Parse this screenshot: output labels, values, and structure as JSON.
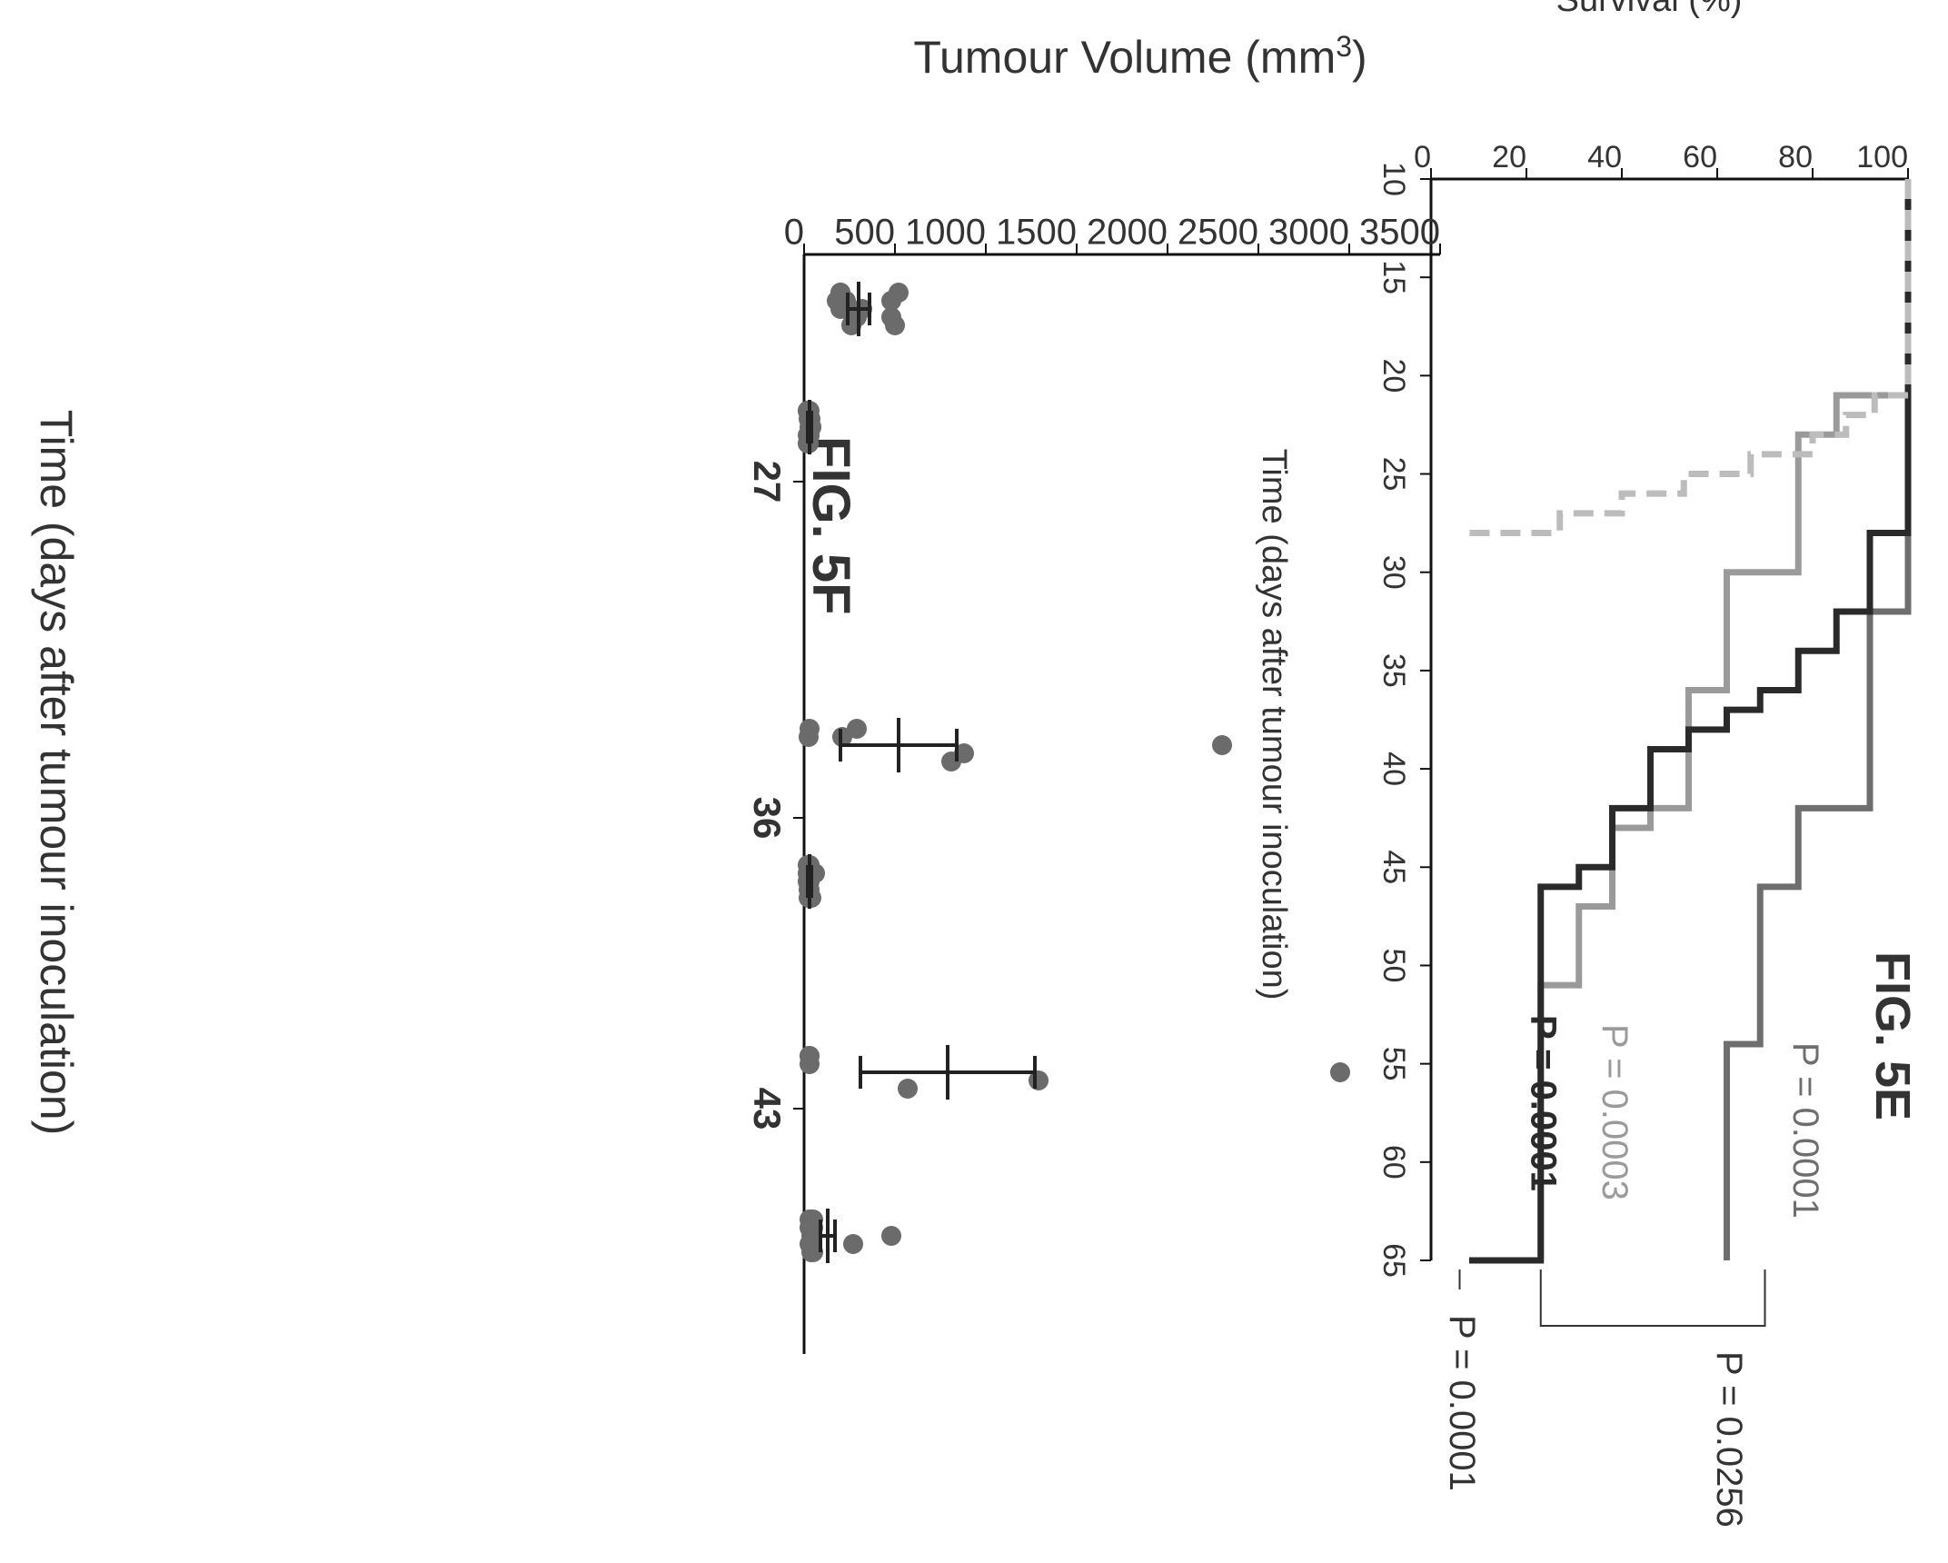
{
  "chart_data": [
    {
      "type": "line",
      "figure_label": "FIG. 5E",
      "xlabel": "Time (days after tumour inoculation)",
      "ylabel": "Survival (%)",
      "xlim": [
        10,
        65
      ],
      "ylim": [
        0,
        100
      ],
      "xticks": [
        10,
        15,
        20,
        25,
        30,
        35,
        40,
        45,
        50,
        55,
        60,
        65
      ],
      "yticks": [
        0,
        20,
        40,
        60,
        80,
        100
      ],
      "series": [
        {
          "color": "#6e6e6e",
          "style": "solid",
          "x": [
            10,
            28,
            32,
            42,
            46,
            54,
            65
          ],
          "y": [
            100,
            100,
            92,
            77,
            69,
            62,
            62
          ],
          "label": "P = 0.0001"
        },
        {
          "color": "#9a9a9a",
          "style": "solid",
          "x": [
            10,
            21,
            23,
            30,
            36,
            42,
            43,
            47,
            51,
            65
          ],
          "y": [
            100,
            85,
            77,
            62,
            54,
            46,
            38,
            31,
            23,
            23
          ],
          "label": "P = 0.0003"
        },
        {
          "color": "#2a2a2a",
          "style": "solid",
          "x": [
            10,
            28,
            32,
            34,
            36,
            37,
            38,
            39,
            42,
            45,
            46,
            65
          ],
          "y": [
            100,
            92,
            85,
            77,
            69,
            62,
            54,
            46,
            38,
            31,
            23,
            8
          ],
          "label": "P = 0.0001"
        },
        {
          "color": "#bcbcbc",
          "style": "dashed",
          "x": [
            10,
            20,
            21,
            22,
            23,
            24,
            25,
            26,
            27,
            28
          ],
          "y": [
            100,
            100,
            93,
            87,
            80,
            67,
            53,
            40,
            27,
            7
          ]
        }
      ],
      "comparisons": [
        {
          "label": "P = 0.0256"
        },
        {
          "label": "P = 0.0001"
        }
      ]
    },
    {
      "type": "scatter",
      "figure_label": "FIG. 5F",
      "xlabel": "Time (days after tumour inoculation)",
      "ylabel_main": "Tumour Volume (mm",
      "ylabel_sup": "3",
      "ylabel_close": ")",
      "ylim": [
        0,
        3500
      ],
      "yticks": [
        0,
        500,
        1000,
        1500,
        2000,
        2500,
        3000,
        3500
      ],
      "groups": [
        {
          "day": "27",
          "mean": 300,
          "sem": 60,
          "values": [
            200,
            180,
            250,
            270,
            260,
            200,
            230,
            320,
            480,
            500,
            520,
            480,
            200,
            290
          ]
        },
        {
          "day": "27",
          "mean": 30,
          "sem": 10,
          "values": [
            20,
            30,
            40,
            30,
            25,
            20,
            35,
            40,
            30,
            20,
            30,
            25,
            30,
            20
          ]
        },
        {
          "day": "36",
          "mean": 520,
          "sem": 320,
          "values": [
            30,
            210,
            2300,
            880,
            810,
            290,
            25
          ]
        },
        {
          "day": "36",
          "mean": 30,
          "sem": 10,
          "values": [
            20,
            60,
            30,
            25,
            40,
            30,
            35,
            20,
            30,
            25,
            30,
            20
          ]
        },
        {
          "day": "43",
          "mean": 790,
          "sem": 480,
          "values": [
            30,
            30,
            2950,
            1290,
            570,
            30
          ]
        },
        {
          "day": "43",
          "mean": 130,
          "sem": 40,
          "values": [
            50,
            40,
            480,
            270,
            40,
            30,
            50,
            40,
            30,
            50,
            40,
            30
          ]
        }
      ],
      "day_ticks": [
        "27",
        "36",
        "43"
      ]
    }
  ]
}
